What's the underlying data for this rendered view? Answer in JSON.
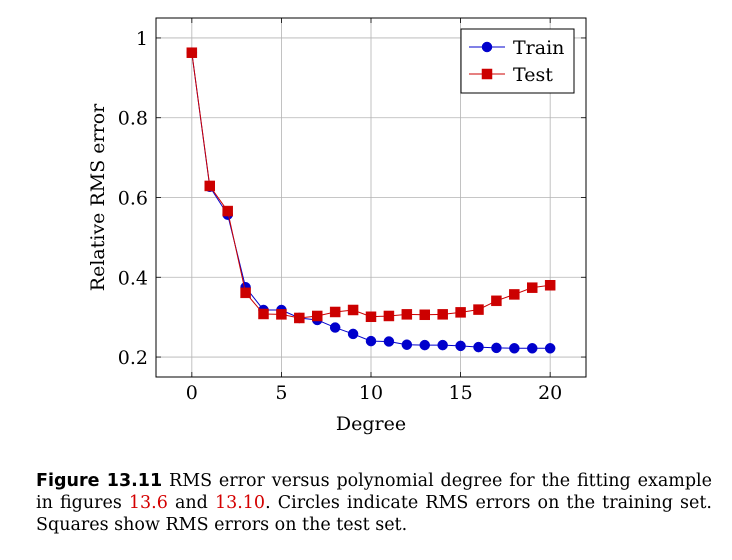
{
  "chart_data": {
    "type": "line",
    "title": "",
    "xlabel": "Degree",
    "ylabel": "Relative RMS error",
    "xlim": [
      -2,
      22
    ],
    "ylim": [
      0.15,
      1.05
    ],
    "xticks": [
      0,
      5,
      10,
      15,
      20
    ],
    "xtick_labels": [
      "0",
      "5",
      "10",
      "15",
      "20"
    ],
    "yticks": [
      0.2,
      0.4,
      0.6,
      0.8,
      1.0
    ],
    "ytick_labels": [
      "0.2",
      "0.4",
      "0.6",
      "0.8",
      "1"
    ],
    "grid": true,
    "legend_position": "top-right",
    "x": [
      0,
      1,
      2,
      3,
      4,
      5,
      6,
      7,
      8,
      9,
      10,
      11,
      12,
      13,
      14,
      15,
      16,
      17,
      18,
      19,
      20
    ],
    "series": [
      {
        "name": "Train",
        "marker": "circle",
        "color": "#0000cc",
        "values": [
          0.963,
          0.627,
          0.557,
          0.375,
          0.318,
          0.318,
          0.298,
          0.293,
          0.274,
          0.258,
          0.24,
          0.239,
          0.231,
          0.23,
          0.23,
          0.228,
          0.225,
          0.223,
          0.222,
          0.222,
          0.222
        ]
      },
      {
        "name": "Test",
        "marker": "square",
        "color": "#cc0000",
        "values": [
          0.963,
          0.629,
          0.566,
          0.361,
          0.308,
          0.307,
          0.298,
          0.303,
          0.313,
          0.318,
          0.301,
          0.303,
          0.307,
          0.306,
          0.307,
          0.312,
          0.319,
          0.341,
          0.357,
          0.374,
          0.38
        ]
      }
    ]
  },
  "caption": {
    "label": "Figure 13.11",
    "text_1": " RMS error versus polynomial degree for the fitting example in figures ",
    "ref_1": "13.6",
    "text_2": " and ",
    "ref_2": "13.10",
    "text_3": ". Circles indicate RMS errors on the training set. Squares show RMS errors on the test set."
  }
}
